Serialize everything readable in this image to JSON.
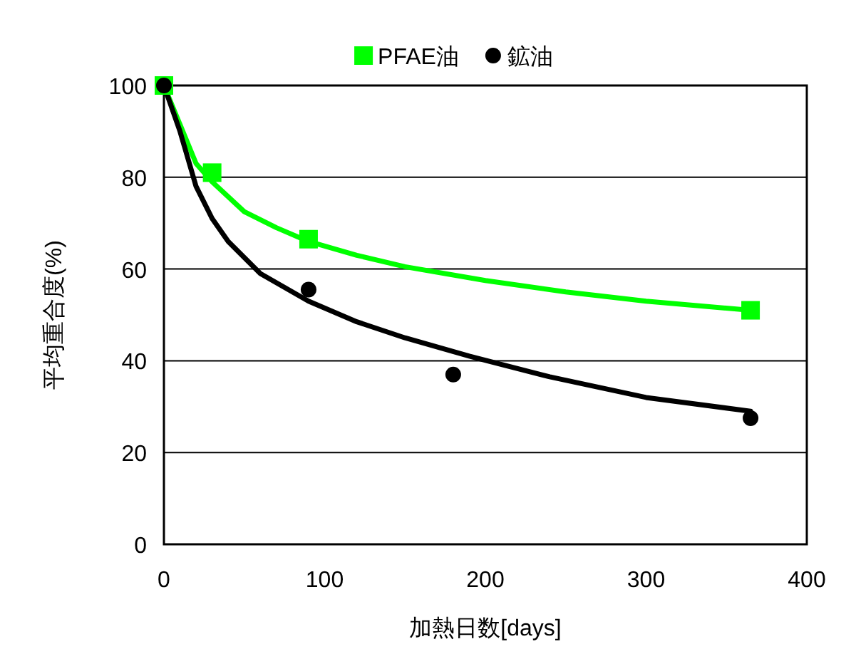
{
  "chart_data": {
    "type": "scatter",
    "xlabel": "加熱日数[days]",
    "ylabel": "平均重合度(%)",
    "xlim": [
      0,
      400
    ],
    "xticks": [
      0,
      100,
      200,
      300,
      400
    ],
    "ylim": [
      0,
      100
    ],
    "yticks": [
      0,
      20,
      40,
      60,
      80,
      100
    ],
    "grid": "y",
    "legend": "top",
    "series": [
      {
        "name": "PFAE油",
        "type": "scatter",
        "marker": "square",
        "color": "#00ff00",
        "x": [
          0,
          30,
          90,
          365
        ],
        "values": [
          100,
          81,
          66.5,
          51
        ]
      },
      {
        "name": "鉱油",
        "type": "scatter",
        "marker": "circle",
        "color": "#000000",
        "x": [
          0,
          90,
          180,
          365
        ],
        "values": [
          100,
          55.5,
          37,
          27.5
        ]
      },
      {
        "type": "line",
        "marker": "none",
        "color": "#00ff00",
        "x": [
          0,
          20,
          30,
          50,
          70,
          90,
          120,
          150,
          200,
          250,
          300,
          365
        ],
        "values": [
          100,
          83,
          79,
          72.5,
          69,
          66,
          63,
          60.5,
          57.5,
          55,
          53,
          51
        ]
      },
      {
        "type": "line",
        "marker": "none",
        "color": "#000000",
        "x": [
          0,
          10,
          20,
          30,
          40,
          60,
          90,
          120,
          150,
          190,
          240,
          300,
          365
        ],
        "values": [
          100,
          90,
          78,
          71,
          66,
          59,
          53,
          48.5,
          45,
          41,
          36.5,
          32,
          29
        ]
      }
    ]
  }
}
